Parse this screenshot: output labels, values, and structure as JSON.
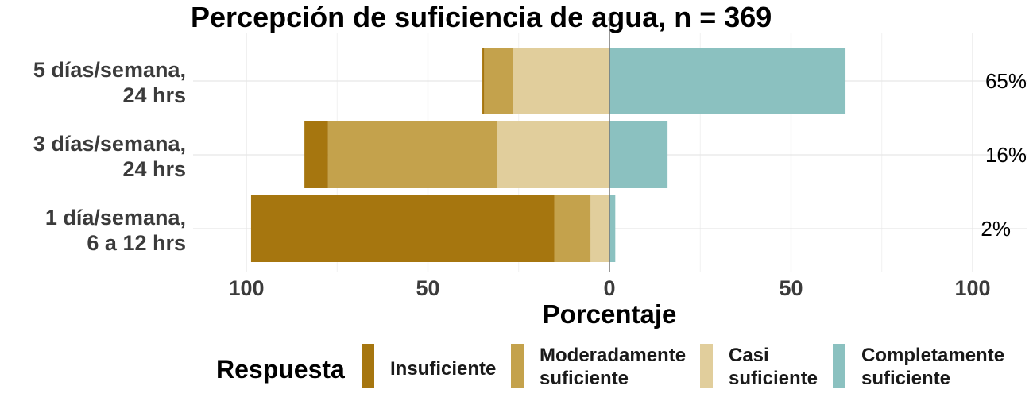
{
  "chart_data": {
    "type": "bar",
    "orientation": "horizontal",
    "stacking": "diverging",
    "title": "Percepción de suficiencia de agua, n = 369",
    "xlabel": "Porcentaje",
    "ylabel": "",
    "xlim": [
      -110,
      110
    ],
    "xticks": [
      -100,
      -50,
      0,
      50,
      100
    ],
    "xtick_labels": [
      "100",
      "50",
      "0",
      "50",
      "100"
    ],
    "grid": true,
    "legend_title": "Respuesta",
    "legend_position": "bottom",
    "categories": [
      "5 días/semana, 24 hrs",
      "3 días/semana, 24 hrs",
      "1 día/semana, 6 a 12 hrs"
    ],
    "category_lines": [
      [
        "5 días/semana,",
        "24 hrs"
      ],
      [
        "3 días/semana,",
        "24 hrs"
      ],
      [
        "1 día/semana,",
        "6 a 12 hrs"
      ]
    ],
    "series": [
      {
        "name": "Insuficiente",
        "name_lines": [
          "Insuficiente"
        ],
        "color": "#A6760F",
        "side": "negative",
        "values": [
          0.5,
          6.5,
          83.5
        ]
      },
      {
        "name": "Moderadamente suficiente",
        "name_lines": [
          "Moderadamente",
          "suficiente"
        ],
        "color": "#C4A24C",
        "side": "negative",
        "values": [
          8,
          46.5,
          10
        ]
      },
      {
        "name": "Casi suficiente",
        "name_lines": [
          "Casi",
          "suficiente"
        ],
        "color": "#E1CE9C",
        "side": "negative",
        "values": [
          26.5,
          31,
          5.2
        ]
      },
      {
        "name": "Completamente suficiente",
        "name_lines": [
          "Completamente",
          "suficiente"
        ],
        "color": "#8BC1C0",
        "side": "positive",
        "values": [
          65,
          16,
          1.6
        ]
      }
    ],
    "right_labels": [
      "65%",
      "16%",
      "2%"
    ]
  }
}
